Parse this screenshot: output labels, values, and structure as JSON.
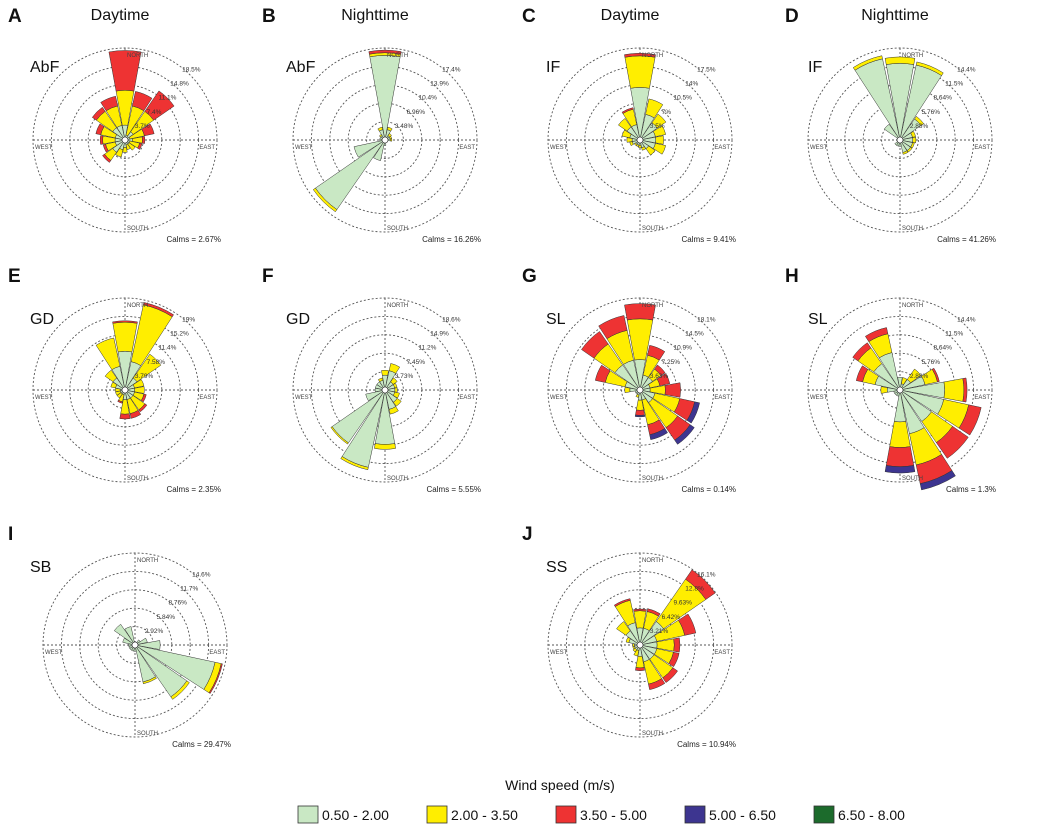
{
  "figure": {
    "column_headers": [
      "Daytime",
      "Nighttime",
      "Daytime",
      "Nighttime"
    ],
    "direction_labels": {
      "north": "NORTH",
      "south": "SOUTH",
      "east": "EAST",
      "west": "WEST"
    }
  },
  "legend": {
    "title": "Wind speed (m/s)",
    "items": [
      {
        "label": "0.50 - 2.00",
        "color": "#c9e8c4"
      },
      {
        "label": "2.00 - 3.50",
        "color": "#ffee00"
      },
      {
        "label": "3.50 - 5.00",
        "color": "#ee3333"
      },
      {
        "label": "5.00 - 6.50",
        "color": "#3d3590"
      },
      {
        "label": "6.50 - 8.00",
        "color": "#1c6b2c"
      }
    ]
  },
  "chart_data": [
    {
      "type": "windrose",
      "letter": "A",
      "site": "AbF",
      "period": "Daytime",
      "calms": "Calms = 2.67%",
      "ring_labels": [
        "3.7%",
        "7.4%",
        "11.1%",
        "14.8%",
        "18.5%"
      ],
      "max_pct": 18.5,
      "petals": [
        [
          3,
          7,
          8,
          0,
          0
        ],
        [
          1,
          6,
          3,
          0,
          0
        ],
        [
          2,
          5,
          5,
          0,
          0
        ],
        [
          1,
          3,
          2,
          0,
          0
        ],
        [
          1.5,
          2,
          0.5,
          0,
          0
        ],
        [
          1,
          2,
          0.5,
          0,
          0
        ],
        [
          1,
          1.5,
          0,
          0,
          0
        ],
        [
          1,
          1,
          0,
          0,
          0
        ],
        [
          1.5,
          1,
          0,
          0,
          0
        ],
        [
          2,
          1.5,
          0,
          0,
          0
        ],
        [
          3,
          2,
          0.5,
          0,
          0
        ],
        [
          2,
          2,
          0.5,
          0,
          0
        ],
        [
          2,
          2.5,
          0.5,
          0,
          0
        ],
        [
          2,
          3,
          1,
          0,
          0
        ],
        [
          3,
          4,
          1,
          0,
          0
        ],
        [
          3,
          4,
          2,
          0,
          0
        ]
      ]
    },
    {
      "type": "windrose",
      "letter": "B",
      "site": "AbF",
      "period": "Nighttime",
      "calms": "Calms = 16.26%",
      "ring_labels": [
        "3.48%",
        "6.96%",
        "10.4%",
        "13.9%",
        "17.4%"
      ],
      "max_pct": 17.4,
      "petals": [
        [
          16,
          0.5,
          0.5,
          0,
          0
        ],
        [
          2,
          0.5,
          0,
          0,
          0
        ],
        [
          1,
          0.5,
          0,
          0,
          0
        ],
        [
          1,
          0.3,
          0,
          0,
          0
        ],
        [
          1,
          0.3,
          0,
          0,
          0
        ],
        [
          0.5,
          0,
          0,
          0,
          0
        ],
        [
          0.5,
          0,
          0,
          0,
          0
        ],
        [
          0.5,
          0,
          0,
          0,
          0
        ],
        [
          1,
          0,
          0,
          0,
          0
        ],
        [
          4,
          0,
          0,
          0,
          0
        ],
        [
          16,
          0.5,
          0,
          0,
          0
        ],
        [
          6,
          0,
          0,
          0,
          0
        ],
        [
          1,
          0,
          0,
          0,
          0
        ],
        [
          1,
          0,
          0,
          0,
          0
        ],
        [
          1,
          0.3,
          0,
          0,
          0
        ],
        [
          2,
          0.5,
          0,
          0,
          0
        ]
      ]
    },
    {
      "type": "windrose",
      "letter": "C",
      "site": "IF",
      "period": "Daytime",
      "calms": "Calms = 9.41%",
      "ring_labels": [
        "3.5%",
        "7%",
        "10.5%",
        "14%",
        "17.5%"
      ],
      "max_pct": 17.5,
      "petals": [
        [
          10,
          6,
          0.5,
          0,
          0
        ],
        [
          5,
          3,
          0,
          0,
          0
        ],
        [
          4,
          2,
          0,
          0,
          0
        ],
        [
          3,
          2,
          0,
          0,
          0
        ],
        [
          3,
          1.5,
          0,
          0,
          0
        ],
        [
          3,
          2,
          0,
          0,
          0
        ],
        [
          2,
          1.5,
          0,
          0,
          0
        ],
        [
          1.5,
          0.5,
          0,
          0,
          0
        ],
        [
          1,
          0.5,
          0,
          0,
          0
        ],
        [
          1,
          0.3,
          0,
          0,
          0
        ],
        [
          1,
          0.3,
          0,
          0,
          0
        ],
        [
          1.5,
          0.5,
          0,
          0,
          0
        ],
        [
          1.5,
          1,
          0,
          0,
          0
        ],
        [
          2,
          1.5,
          0,
          0,
          0
        ],
        [
          3,
          2,
          0,
          0,
          0
        ],
        [
          3,
          3,
          0.3,
          0,
          0
        ]
      ]
    },
    {
      "type": "windrose",
      "letter": "D",
      "site": "IF",
      "period": "Nighttime",
      "calms": "Calms = 41.26%",
      "ring_labels": [
        "2.88%",
        "5.76%",
        "8.64%",
        "11.5%",
        "14.4%"
      ],
      "max_pct": 14.4,
      "petals": [
        [
          12,
          1,
          0,
          0,
          0
        ],
        [
          12,
          0.5,
          0,
          0,
          0
        ],
        [
          4,
          0.5,
          0,
          0,
          0
        ],
        [
          2,
          0.5,
          0,
          0,
          0
        ],
        [
          2,
          0.5,
          0,
          0,
          0
        ],
        [
          2,
          0.3,
          0,
          0,
          0
        ],
        [
          2,
          0.3,
          0,
          0,
          0
        ],
        [
          2,
          0.3,
          0,
          0,
          0
        ],
        [
          1,
          0,
          0,
          0,
          0
        ],
        [
          1,
          0,
          0,
          0,
          0
        ],
        [
          1,
          0,
          0,
          0,
          0
        ],
        [
          0.5,
          0,
          0,
          0,
          0
        ],
        [
          0.5,
          0,
          0,
          0,
          0
        ],
        [
          0.5,
          0,
          0,
          0,
          0
        ],
        [
          3,
          0,
          0,
          0,
          0
        ],
        [
          13,
          0.5,
          0,
          0,
          0
        ]
      ]
    },
    {
      "type": "windrose",
      "letter": "E",
      "site": "GD",
      "period": "Daytime",
      "calms": "Calms = 2.35%",
      "ring_labels": [
        "3.79%",
        "7.58%",
        "11.4%",
        "15.2%",
        "19%"
      ],
      "max_pct": 19,
      "petals": [
        [
          8,
          6,
          0.3,
          0,
          0
        ],
        [
          6,
          12,
          0.5,
          0,
          0
        ],
        [
          3,
          6,
          0,
          0,
          0
        ],
        [
          2,
          2,
          0,
          0,
          0
        ],
        [
          2,
          2,
          0,
          0,
          0
        ],
        [
          2,
          2,
          0.5,
          0,
          0
        ],
        [
          2,
          3,
          0.5,
          0,
          0
        ],
        [
          2,
          3,
          1,
          0,
          0
        ],
        [
          2,
          3,
          1,
          0,
          0
        ],
        [
          1,
          1.5,
          0.3,
          0,
          0
        ],
        [
          1,
          1,
          0,
          0,
          0
        ],
        [
          1,
          1,
          0,
          0,
          0
        ],
        [
          1,
          1,
          0,
          0,
          0
        ],
        [
          2,
          1,
          0,
          0,
          0
        ],
        [
          3,
          2,
          0,
          0,
          0
        ],
        [
          5,
          6,
          0,
          0,
          0
        ]
      ]
    },
    {
      "type": "windrose",
      "letter": "F",
      "site": "GD",
      "period": "Nighttime",
      "calms": "Calms = 5.55%",
      "ring_labels": [
        "3.73%",
        "7.45%",
        "11.2%",
        "14.9%",
        "18.6%"
      ],
      "max_pct": 18.6,
      "petals": [
        [
          3,
          1,
          0,
          0,
          0
        ],
        [
          4,
          1.5,
          0,
          0,
          0
        ],
        [
          2,
          1,
          0,
          0,
          0
        ],
        [
          2,
          0.5,
          0,
          0,
          0
        ],
        [
          2,
          0.5,
          0,
          0,
          0
        ],
        [
          2,
          1,
          0,
          0,
          0
        ],
        [
          3,
          1,
          0,
          0,
          0
        ],
        [
          4,
          1,
          0,
          0,
          0
        ],
        [
          11,
          1,
          0,
          0,
          0
        ],
        [
          16,
          0.5,
          0,
          0,
          0
        ],
        [
          13,
          0.3,
          0,
          0,
          0
        ],
        [
          4,
          0,
          0,
          0,
          0
        ],
        [
          2,
          0,
          0,
          0,
          0
        ],
        [
          2,
          0,
          0,
          0,
          0
        ],
        [
          2,
          0,
          0,
          0,
          0
        ],
        [
          2,
          0.5,
          0,
          0,
          0
        ]
      ]
    },
    {
      "type": "windrose",
      "letter": "G",
      "site": "SL",
      "period": "Daytime",
      "calms": "Calms = 0.14%",
      "ring_labels": [
        "3.63%",
        "7.25%",
        "10.9%",
        "14.5%",
        "18.1%"
      ],
      "max_pct": 18.1,
      "petals": [
        [
          6,
          8,
          3,
          0,
          0
        ],
        [
          3,
          4,
          2,
          0,
          0
        ],
        [
          3,
          2,
          1,
          0,
          0
        ],
        [
          2,
          2,
          2,
          0,
          0
        ],
        [
          2,
          3,
          3,
          0,
          0
        ],
        [
          3,
          5,
          3,
          1,
          0
        ],
        [
          3,
          6,
          3,
          1,
          0
        ],
        [
          2,
          5,
          2,
          1,
          0
        ],
        [
          2,
          2,
          1,
          0.3,
          0
        ],
        [
          1,
          0.5,
          0,
          0,
          0
        ],
        [
          1,
          0,
          0,
          0,
          0
        ],
        [
          1,
          0,
          0,
          0,
          0
        ],
        [
          2,
          1,
          0,
          0,
          0
        ],
        [
          3,
          4,
          2,
          0,
          0
        ],
        [
          6,
          5,
          3,
          0,
          0
        ],
        [
          6,
          6,
          3,
          0,
          0
        ]
      ]
    },
    {
      "type": "windrose",
      "letter": "H",
      "site": "SL",
      "period": "Nighttime",
      "calms": "Calms = 1.3%",
      "ring_labels": [
        "2.88%",
        "5.76%",
        "8.64%",
        "11.5%",
        "14.4%"
      ],
      "max_pct": 14.4,
      "petals": [
        [
          2,
          0,
          0,
          0,
          0
        ],
        [
          1,
          1,
          0,
          0,
          0
        ],
        [
          2,
          2,
          0,
          0,
          0
        ],
        [
          4,
          2,
          0.3,
          0,
          0
        ],
        [
          7,
          3,
          0.5,
          0,
          0
        ],
        [
          7,
          4,
          2,
          0,
          0
        ],
        [
          6,
          4,
          3,
          0,
          0
        ],
        [
          7,
          5,
          3,
          1,
          0
        ],
        [
          5,
          4,
          3,
          1,
          0
        ],
        [
          1,
          0,
          0,
          0,
          0
        ],
        [
          1,
          0,
          0,
          0,
          0
        ],
        [
          1,
          0,
          0,
          0,
          0
        ],
        [
          2,
          1,
          0,
          0,
          0
        ],
        [
          4,
          2,
          1,
          0,
          0
        ],
        [
          5,
          3,
          1,
          0,
          0
        ],
        [
          6,
          3,
          1,
          0,
          0
        ]
      ]
    },
    {
      "type": "windrose",
      "letter": "I",
      "site": "SB",
      "period": "",
      "calms": "Calms = 29.47%",
      "ring_labels": [
        "2.92%",
        "5.84%",
        "8.76%",
        "11.7%",
        "14.6%"
      ],
      "max_pct": 14.6,
      "petals": [
        [
          0.5,
          0,
          0,
          0,
          0
        ],
        [
          0.5,
          0,
          0,
          0,
          0
        ],
        [
          1,
          0,
          0,
          0,
          0
        ],
        [
          2,
          0,
          0,
          0,
          0
        ],
        [
          4,
          0,
          0,
          0,
          0
        ],
        [
          13,
          1,
          0.2,
          0,
          0
        ],
        [
          10,
          0.5,
          0,
          0,
          0
        ],
        [
          6,
          0.3,
          0,
          0,
          0
        ],
        [
          1,
          0,
          0,
          0,
          0
        ],
        [
          1,
          0,
          0,
          0,
          0
        ],
        [
          1,
          0,
          0,
          0,
          0
        ],
        [
          1,
          0,
          0,
          0,
          0
        ],
        [
          1,
          0,
          0,
          0,
          0
        ],
        [
          2,
          0,
          0,
          0,
          0
        ],
        [
          4,
          0,
          0,
          0,
          0
        ],
        [
          3,
          0,
          0,
          0,
          0
        ]
      ]
    },
    {
      "type": "windrose",
      "letter": "J",
      "site": "SS",
      "period": "",
      "calms": "Calms = 10.94%",
      "ring_labels": [
        "3.21%",
        "6.42%",
        "9.63%",
        "12.8%",
        "16.1%"
      ],
      "max_pct": 16.1,
      "petals": [
        [
          3,
          3,
          0.3,
          0,
          0
        ],
        [
          3,
          3,
          0.5,
          0,
          0
        ],
        [
          5,
          9,
          2,
          0,
          0
        ],
        [
          3,
          5,
          2,
          0,
          0
        ],
        [
          3,
          3,
          1,
          0,
          0
        ],
        [
          3,
          3,
          1,
          0,
          0
        ],
        [
          3,
          4,
          1,
          0,
          0
        ],
        [
          3,
          4,
          1,
          0,
          0
        ],
        [
          2,
          2,
          0.5,
          0,
          0
        ],
        [
          1,
          1,
          0,
          0,
          0
        ],
        [
          1,
          0.5,
          0,
          0,
          0
        ],
        [
          1,
          0.3,
          0,
          0,
          0
        ],
        [
          1,
          0.3,
          0,
          0,
          0
        ],
        [
          2,
          0.5,
          0,
          0,
          0
        ],
        [
          3,
          2,
          0,
          0,
          0
        ],
        [
          4,
          4,
          0.3,
          0,
          0
        ]
      ]
    }
  ]
}
